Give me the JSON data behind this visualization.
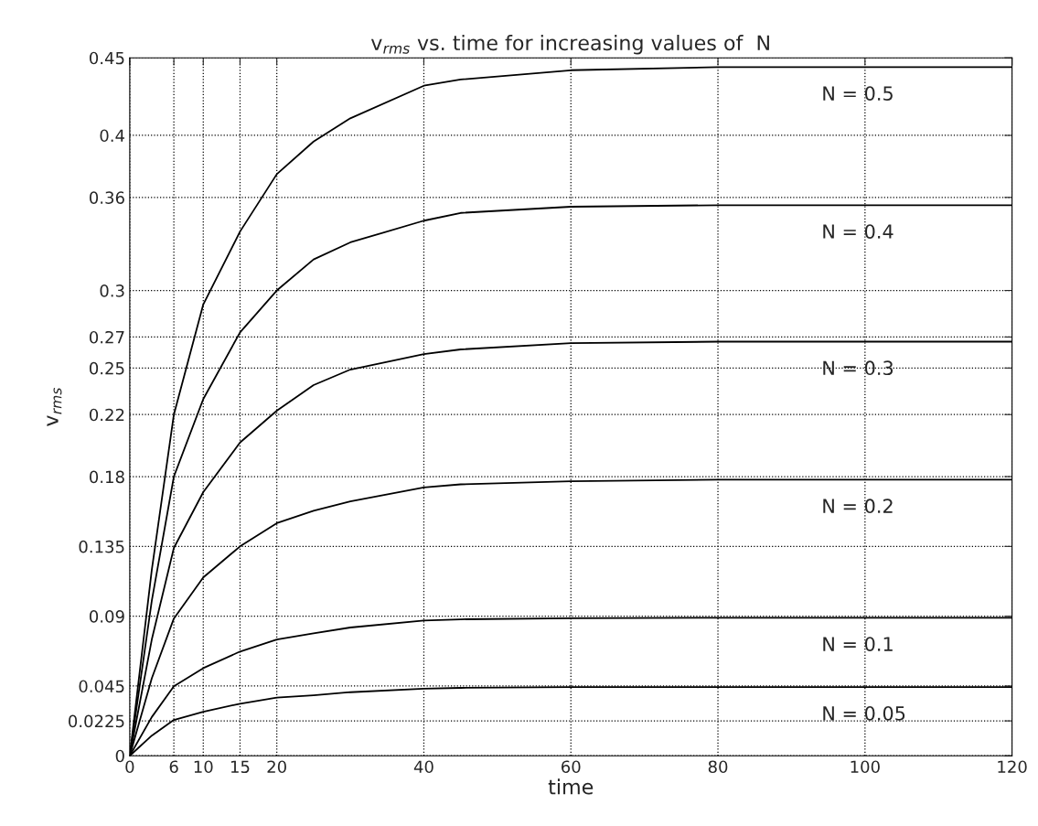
{
  "chart_data": {
    "type": "line",
    "title": "v$_{rms}$ vs. time for increasing values of  N",
    "xlabel": "time",
    "ylabel": "v$_{rms}$",
    "xlim": [
      0,
      120
    ],
    "xticks": [
      0,
      6,
      10,
      15,
      20,
      40,
      60,
      80,
      100,
      120
    ],
    "ylim": [
      0,
      0.45
    ],
    "yticks": [
      0,
      0.0225,
      0.045,
      0.09,
      0.135,
      0.18,
      0.22,
      0.25,
      0.27,
      0.3,
      0.36,
      0.4,
      0.45
    ],
    "grid": true,
    "legend": false,
    "marker": "none",
    "line_style": "solid",
    "x": [
      0,
      3,
      6,
      10,
      15,
      20,
      25,
      30,
      40,
      45,
      60,
      80,
      100,
      120
    ],
    "series": [
      {
        "name": "N = 0.5",
        "color": "#000000",
        "values": [
          0,
          0.12,
          0.22,
          0.291,
          0.338,
          0.375,
          0.396,
          0.411,
          0.432,
          0.436,
          0.442,
          0.444,
          0.444,
          0.444
        ]
      },
      {
        "name": "N = 0.4",
        "color": "#000000",
        "values": [
          0,
          0.1,
          0.18,
          0.23,
          0.273,
          0.3,
          0.32,
          0.331,
          0.345,
          0.35,
          0.354,
          0.355,
          0.355,
          0.355
        ]
      },
      {
        "name": "N = 0.3",
        "color": "#000000",
        "values": [
          0,
          0.075,
          0.134,
          0.17,
          0.202,
          0.2225,
          0.239,
          0.249,
          0.259,
          0.262,
          0.266,
          0.267,
          0.267,
          0.267
        ]
      },
      {
        "name": "N = 0.2",
        "color": "#000000",
        "values": [
          0,
          0.05,
          0.0885,
          0.115,
          0.135,
          0.15,
          0.158,
          0.164,
          0.173,
          0.175,
          0.177,
          0.178,
          0.178,
          0.178
        ]
      },
      {
        "name": "N = 0.1",
        "color": "#000000",
        "values": [
          0,
          0.025,
          0.0448,
          0.0565,
          0.0672,
          0.075,
          0.079,
          0.0827,
          0.0872,
          0.088,
          0.0887,
          0.089,
          0.089,
          0.089
        ]
      },
      {
        "name": "N = 0.05",
        "color": "#000000",
        "values": [
          0,
          0.013,
          0.0231,
          0.0284,
          0.0336,
          0.0375,
          0.039,
          0.041,
          0.0433,
          0.0438,
          0.0443,
          0.0443,
          0.0443,
          0.0443
        ]
      }
    ]
  }
}
